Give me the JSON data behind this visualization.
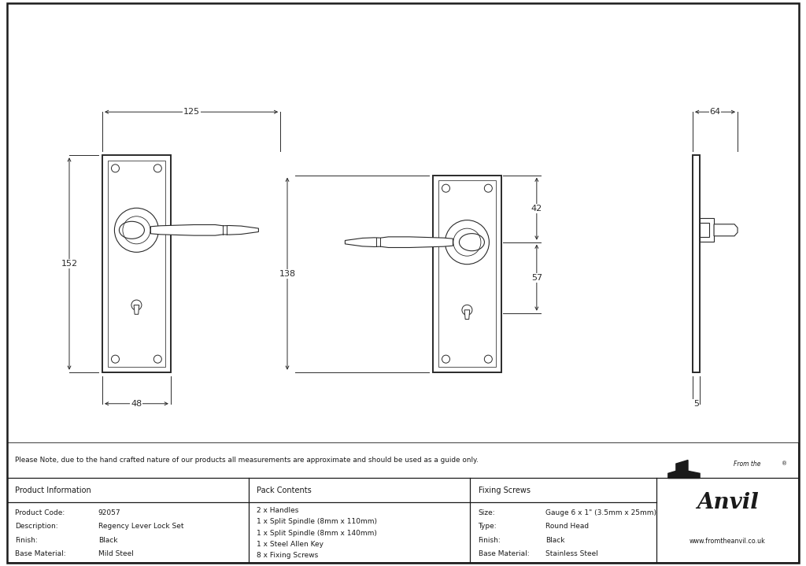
{
  "bg_color": "#ffffff",
  "line_color": "#2a2a2a",
  "note_text": "Please Note, due to the hand crafted nature of our products all measurements are approximate and should be used as a guide only.",
  "table_headers": [
    "Product Information",
    "Pack Contents",
    "Fixing Screws",
    ""
  ],
  "product_info": [
    [
      "Product Code:",
      "92057"
    ],
    [
      "Description:",
      "Regency Lever Lock Set"
    ],
    [
      "Finish:",
      "Black"
    ],
    [
      "Base Material:",
      "Mild Steel"
    ]
  ],
  "pack_contents": [
    "2 x Handles",
    "1 x Split Spindle (8mm x 110mm)",
    "1 x Split Spindle (8mm x 140mm)",
    "1 x Steel Allen Key",
    "8 x Fixing Screws"
  ],
  "fixing_screws": [
    [
      "Size:",
      "Gauge 6 x 1\" (3.5mm x 25mm)"
    ],
    [
      "Type:",
      "Round Head"
    ],
    [
      "Finish:",
      "Black"
    ],
    [
      "Base Material:",
      "Stainless Steel"
    ]
  ],
  "dim_125": "125",
  "dim_152": "152",
  "dim_48": "48",
  "dim_138": "138",
  "dim_42": "42",
  "dim_57": "57",
  "dim_64": "64",
  "dim_5": "5",
  "anvil_text": "Anvil",
  "from_the_text": "From the",
  "website_text": "www.fromtheanvil.co.uk"
}
